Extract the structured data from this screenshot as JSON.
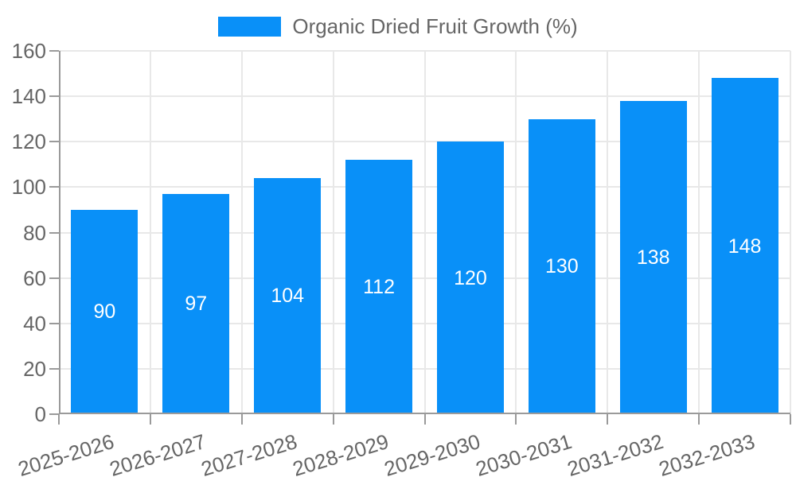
{
  "chart_data": {
    "type": "bar",
    "title": "",
    "legend": "Organic Dried Fruit Growth (%)",
    "legend_position": "top-center",
    "categories": [
      "2025-2026",
      "2026-2027",
      "2027-2028",
      "2028-2029",
      "2029-2030",
      "2030-2031",
      "2031-2032",
      "2032-2033"
    ],
    "values": [
      90,
      97,
      104,
      112,
      120,
      130,
      138,
      148
    ],
    "xlabel": "",
    "ylabel": "",
    "ylim": [
      0,
      160
    ],
    "y_ticks": [
      0,
      20,
      40,
      60,
      80,
      100,
      120,
      140,
      160
    ],
    "grid": true,
    "bar_label_position": "inside-center",
    "x_tick_label_rotation_deg": -17,
    "colors": {
      "bar": "#0990f8",
      "grid_line": "#e8e8e8",
      "axis_line": "#9a9a9a",
      "axis_label": "#666666",
      "bar_label": "#ffffff",
      "background": "#ffffff"
    }
  }
}
